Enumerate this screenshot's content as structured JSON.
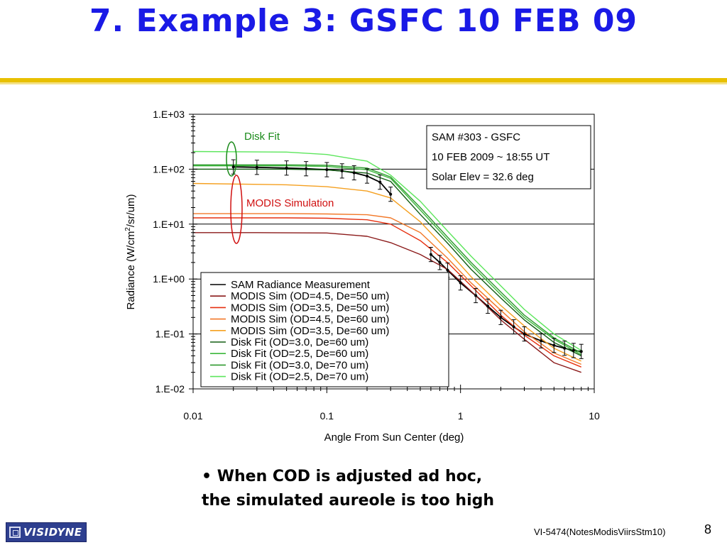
{
  "slide": {
    "title": "7. Example 3: GSFC 10 FEB 09",
    "title_color": "#1a1ae6",
    "rule_colors": [
      "#e8c000",
      "#f3e188"
    ],
    "bullet_lines": [
      "• When COD is adjusted ad hoc,",
      "the simulated aureole is too high"
    ],
    "logo_text": "VISIDYNE",
    "footer_ref": "VI-5474(NotesModisViirsStm10)",
    "page_number": "8"
  },
  "chart_data": {
    "type": "line",
    "title": "",
    "xlabel": "Angle From Sun Center (deg)",
    "ylabel_parts": [
      "Radiance (W/cm",
      "2",
      "/sr/um)"
    ],
    "x_scale": "log",
    "y_scale": "log",
    "xlim": [
      0.01,
      10
    ],
    "ylim": [
      0.01,
      1000
    ],
    "x_ticks": [
      0.01,
      0.1,
      1,
      10
    ],
    "x_tick_labels": [
      "0.01",
      "0.1",
      "1",
      "10"
    ],
    "y_ticks": [
      0.01,
      0.1,
      1,
      10,
      100,
      1000
    ],
    "y_tick_labels": [
      "1.E-02",
      "1.E-01",
      "1.E+00",
      "1.E+01",
      "1.E+02",
      "1.E+03"
    ],
    "grid": "horizontal",
    "info_box": [
      "SAM #303 - GSFC",
      "10 FEB 2009 ~ 18:55 UT",
      "Solar Elev = 32.6 deg"
    ],
    "annotations": [
      {
        "text": "Disk Fit",
        "color": "#1a8a1a"
      },
      {
        "text": "MODIS Simulation",
        "color": "#d01010"
      }
    ],
    "legend_position": "lower-left",
    "series": [
      {
        "name": "SAM Radiance Measurement",
        "color": "#000000",
        "error_bars": true,
        "points": [
          [
            0.02,
            110
          ],
          [
            0.03,
            108
          ],
          [
            0.05,
            105
          ],
          [
            0.07,
            102
          ],
          [
            0.1,
            98
          ],
          [
            0.13,
            93
          ],
          [
            0.16,
            86
          ],
          [
            0.2,
            75
          ],
          [
            0.25,
            58
          ],
          [
            0.3,
            35
          ]
        ]
      },
      {
        "name": "SAM Radiance Measurement",
        "color": "#000000",
        "error_bars": true,
        "legend": false,
        "points": [
          [
            0.6,
            2.8
          ],
          [
            0.7,
            2.0
          ],
          [
            0.8,
            1.45
          ],
          [
            1.0,
            0.85
          ],
          [
            1.3,
            0.5
          ],
          [
            1.6,
            0.32
          ],
          [
            2.0,
            0.2
          ],
          [
            2.5,
            0.135
          ],
          [
            3.0,
            0.1
          ],
          [
            4.0,
            0.075
          ],
          [
            5.0,
            0.062
          ],
          [
            6.0,
            0.055
          ],
          [
            7.0,
            0.05
          ],
          [
            8.0,
            0.048
          ]
        ]
      },
      {
        "name": "MODIS Sim (OD=4.5, De=50 um)",
        "color": "#8b1a1a",
        "points": [
          [
            0.01,
            7.0
          ],
          [
            0.03,
            7.0
          ],
          [
            0.1,
            6.9
          ],
          [
            0.2,
            6.0
          ],
          [
            0.3,
            4.6
          ],
          [
            0.5,
            2.8
          ],
          [
            0.8,
            1.5
          ],
          [
            1.2,
            0.6
          ],
          [
            2.0,
            0.18
          ],
          [
            3.0,
            0.08
          ],
          [
            5.0,
            0.03
          ],
          [
            8.0,
            0.02
          ]
        ]
      },
      {
        "name": "MODIS Sim (OD=3.5, De=50 um)",
        "color": "#e63010",
        "points": [
          [
            0.01,
            13
          ],
          [
            0.05,
            13
          ],
          [
            0.1,
            12.8
          ],
          [
            0.2,
            12
          ],
          [
            0.3,
            10
          ],
          [
            0.5,
            5
          ],
          [
            0.8,
            2.0
          ],
          [
            1.2,
            0.75
          ],
          [
            2.0,
            0.22
          ],
          [
            3.0,
            0.095
          ],
          [
            5.0,
            0.04
          ],
          [
            8.0,
            0.025
          ]
        ]
      },
      {
        "name": "MODIS Sim (OD=4.5, De=60 um)",
        "color": "#f27828",
        "points": [
          [
            0.01,
            15.5
          ],
          [
            0.05,
            15.5
          ],
          [
            0.1,
            15.3
          ],
          [
            0.2,
            14.8
          ],
          [
            0.3,
            13
          ],
          [
            0.5,
            7
          ],
          [
            0.8,
            2.4
          ],
          [
            1.2,
            0.85
          ],
          [
            2.0,
            0.27
          ],
          [
            3.0,
            0.11
          ],
          [
            5.0,
            0.045
          ],
          [
            8.0,
            0.028
          ]
        ]
      },
      {
        "name": "MODIS Sim (OD=3.5, De=60 um)",
        "color": "#f5a020",
        "points": [
          [
            0.01,
            55
          ],
          [
            0.05,
            52
          ],
          [
            0.1,
            48
          ],
          [
            0.2,
            40
          ],
          [
            0.3,
            30
          ],
          [
            0.5,
            11
          ],
          [
            0.8,
            3.3
          ],
          [
            1.2,
            1.1
          ],
          [
            2.0,
            0.33
          ],
          [
            3.0,
            0.14
          ],
          [
            5.0,
            0.055
          ],
          [
            8.0,
            0.032
          ]
        ]
      },
      {
        "name": "Disk Fit (OD=3.0, De=60 um)",
        "color": "#135e13",
        "points": [
          [
            0.01,
            100
          ],
          [
            0.05,
            100
          ],
          [
            0.1,
            97
          ],
          [
            0.2,
            85
          ],
          [
            0.3,
            60
          ],
          [
            0.5,
            15
          ],
          [
            0.8,
            4.5
          ],
          [
            1.2,
            1.5
          ],
          [
            2.0,
            0.45
          ],
          [
            3.0,
            0.18
          ],
          [
            5.0,
            0.07
          ],
          [
            8.0,
            0.04
          ]
        ]
      },
      {
        "name": "Disk Fit (OD=2.5, De=60 um)",
        "color": "#3cb83c",
        "points": [
          [
            0.01,
            115
          ],
          [
            0.05,
            115
          ],
          [
            0.1,
            112
          ],
          [
            0.2,
            98
          ],
          [
            0.3,
            68
          ],
          [
            0.5,
            18
          ],
          [
            0.8,
            5.2
          ],
          [
            1.2,
            1.8
          ],
          [
            2.0,
            0.52
          ],
          [
            3.0,
            0.2
          ],
          [
            5.0,
            0.08
          ],
          [
            8.0,
            0.042
          ]
        ]
      },
      {
        "name": "Disk Fit (OD=3.0, De=70 um)",
        "color": "#2f9a2f",
        "points": [
          [
            0.01,
            120
          ],
          [
            0.05,
            120
          ],
          [
            0.1,
            118
          ],
          [
            0.2,
            105
          ],
          [
            0.3,
            72
          ],
          [
            0.5,
            20
          ],
          [
            0.8,
            5.8
          ],
          [
            1.2,
            2.0
          ],
          [
            2.0,
            0.58
          ],
          [
            3.0,
            0.22
          ],
          [
            5.0,
            0.085
          ],
          [
            8.0,
            0.045
          ]
        ]
      },
      {
        "name": "Disk Fit (OD=2.5, De=70 um)",
        "color": "#5ce65c",
        "points": [
          [
            0.01,
            210
          ],
          [
            0.05,
            205
          ],
          [
            0.1,
            185
          ],
          [
            0.2,
            140
          ],
          [
            0.3,
            78
          ],
          [
            0.5,
            26
          ],
          [
            0.8,
            7.5
          ],
          [
            1.2,
            2.6
          ],
          [
            2.0,
            0.75
          ],
          [
            3.0,
            0.28
          ],
          [
            5.0,
            0.1
          ],
          [
            8.0,
            0.05
          ]
        ]
      }
    ]
  }
}
